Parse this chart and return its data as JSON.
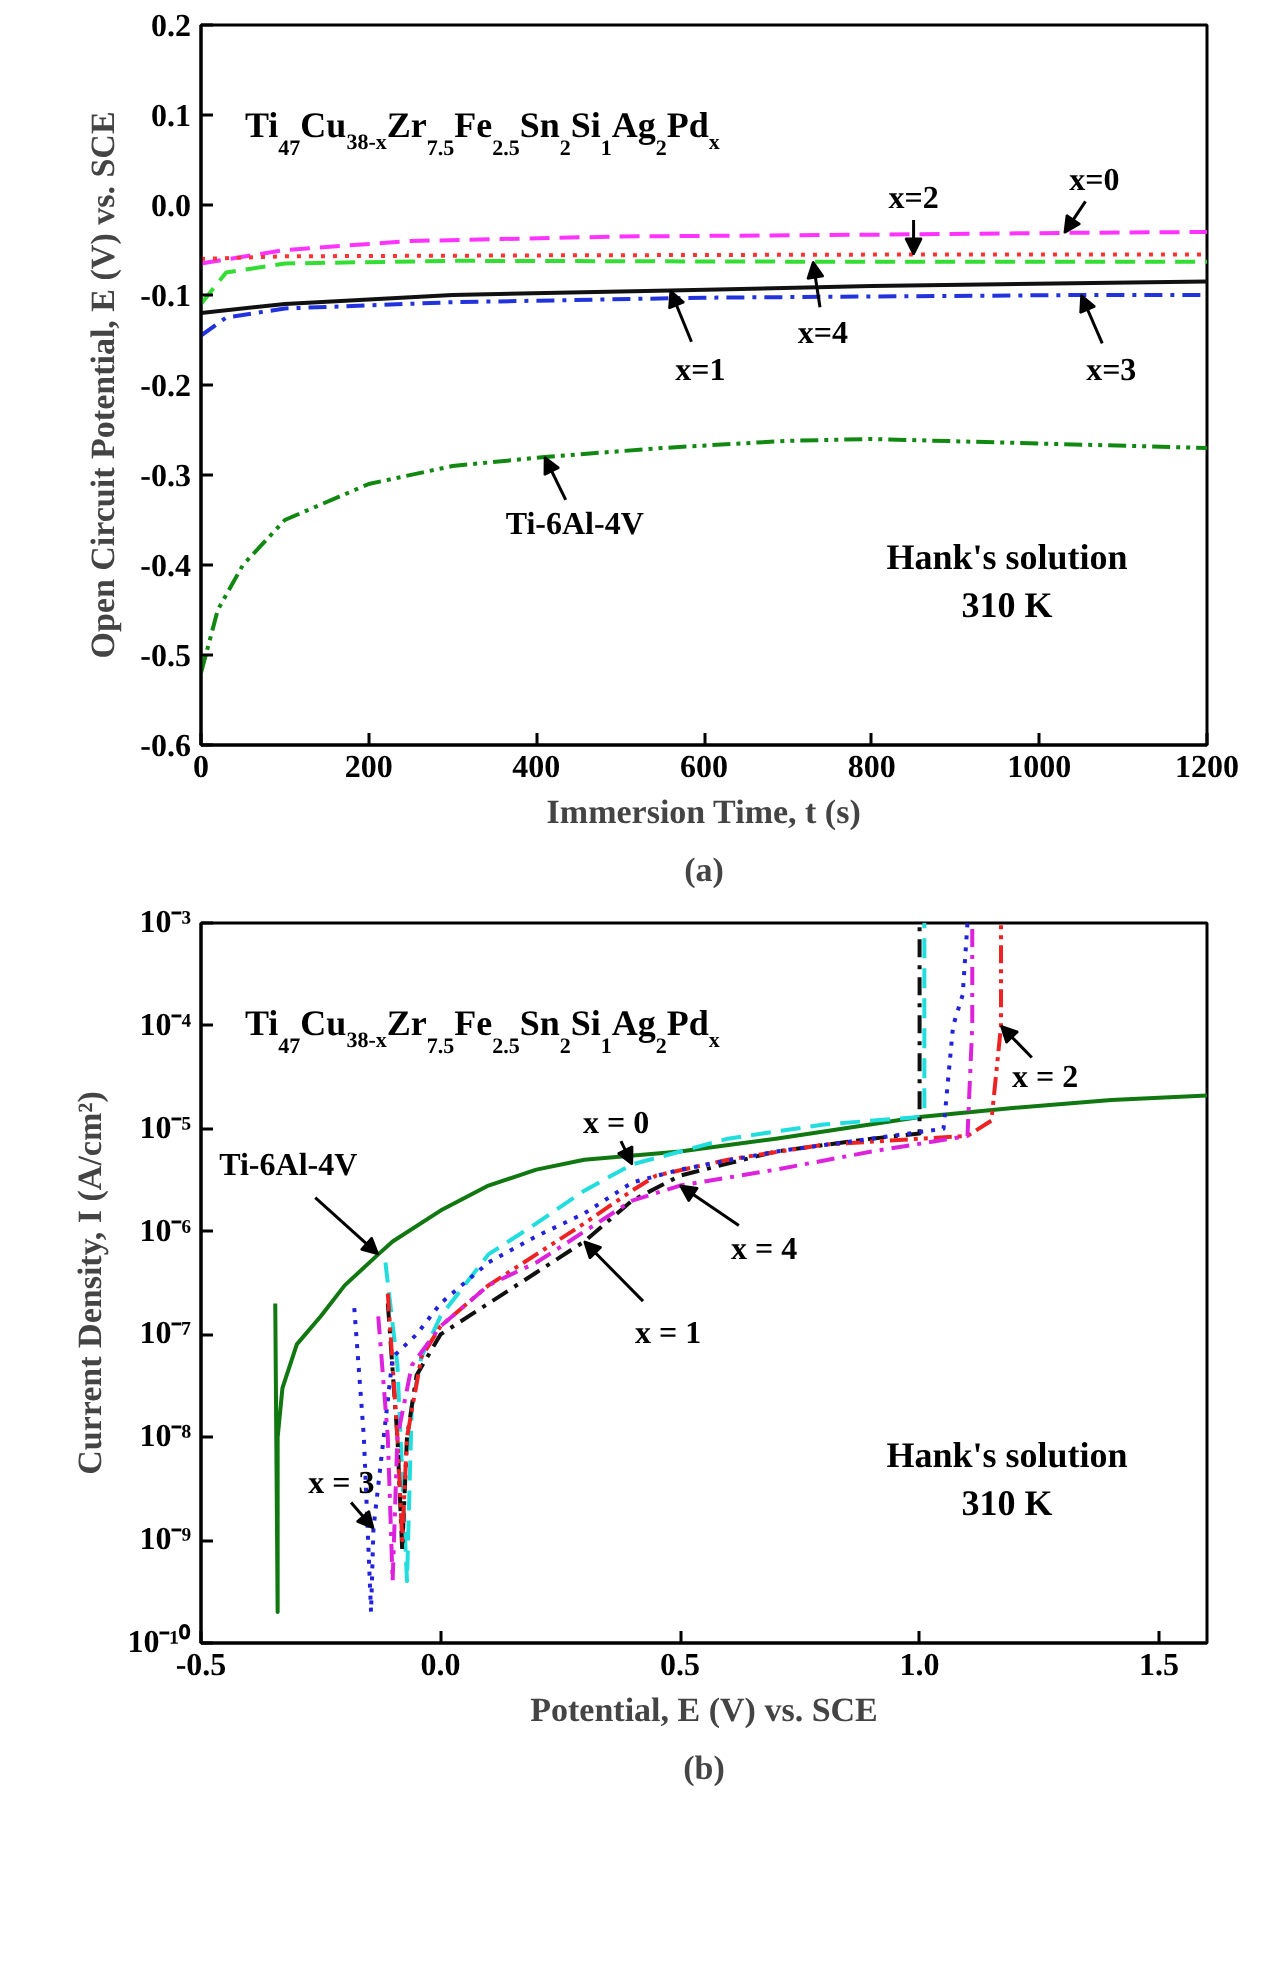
{
  "chart_data": [
    {
      "type": "line",
      "title": "(a)",
      "xlabel": "Immersion Time, t (s)",
      "ylabel": "Open Circuit Potential, E (V) vs. SCE",
      "xlim": [
        0,
        1200
      ],
      "xticks": [
        0,
        200,
        400,
        600,
        800,
        1000,
        1200
      ],
      "ylim": [
        -0.6,
        0.2
      ],
      "yticks": [
        {
          "value": -0.6,
          "label": "-0.6"
        },
        {
          "value": -0.5,
          "label": "-0.5"
        },
        {
          "value": -0.4,
          "label": "-0.4"
        },
        {
          "value": -0.3,
          "label": "-0.3"
        },
        {
          "value": -0.2,
          "label": "-0.2"
        },
        {
          "value": -0.1,
          "label": "-0.1"
        },
        {
          "value": 0,
          "label": "0.0"
        },
        {
          "value": 0.1,
          "label": "0.1"
        },
        {
          "value": 0.2,
          "label": "0.2"
        }
      ],
      "grid": false,
      "marker": "none",
      "annotations": [
        "Ti$_{47}$Cu$_{38-x}$Zr$_{7.5}$Fe$_{2.5}$Sn$_{2}$Si$_{1}$Ag$_{2}$Pd$_{x}$",
        "Hank's solution\n310 K"
      ],
      "series": [
        {
          "name": "x=0",
          "color": "#ff33ff",
          "line_style": "dashed",
          "x": [
            0,
            100,
            250,
            500,
            800,
            1030,
            1200
          ],
          "values": [
            -0.065,
            -0.05,
            -0.04,
            -0.035,
            -0.033,
            -0.031,
            -0.03
          ]
        },
        {
          "name": "x=2",
          "color": "#ff3333",
          "line_style": "dotted",
          "x": [
            0,
            100,
            400,
            850,
            1200
          ],
          "values": [
            -0.06,
            -0.057,
            -0.056,
            -0.055,
            -0.055
          ]
        },
        {
          "name": "x=4",
          "color": "#33dd33",
          "line_style": "dashed",
          "x": [
            0,
            30,
            100,
            300,
            730,
            1200
          ],
          "values": [
            -0.11,
            -0.075,
            -0.065,
            -0.062,
            -0.063,
            -0.063
          ]
        },
        {
          "name": "x=1",
          "color": "#111111",
          "line_style": "solid",
          "x": [
            0,
            100,
            300,
            560,
            800,
            1200
          ],
          "values": [
            -0.12,
            -0.11,
            -0.1,
            -0.095,
            -0.09,
            -0.085
          ]
        },
        {
          "name": "x=3",
          "color": "#2233dd",
          "line_style": "dashdot",
          "x": [
            0,
            30,
            100,
            300,
            600,
            1050,
            1200
          ],
          "values": [
            -0.145,
            -0.125,
            -0.115,
            -0.108,
            -0.103,
            -0.1,
            -0.1
          ]
        },
        {
          "name": "Ti-6Al-4V",
          "color": "#118811",
          "line_style": "dashdotdot",
          "x": [
            0,
            20,
            50,
            100,
            200,
            300,
            410,
            550,
            700,
            800,
            1000,
            1200
          ],
          "values": [
            -0.52,
            -0.45,
            -0.4,
            -0.35,
            -0.31,
            -0.29,
            -0.28,
            -0.27,
            -0.262,
            -0.26,
            -0.265,
            -0.27
          ]
        }
      ]
    },
    {
      "type": "line",
      "title": "(b)",
      "xlabel": "Potential, E (V) vs. SCE",
      "ylabel": "Current Density, I (A/cm²)",
      "log": "y",
      "xlim": [
        -0.5,
        1.6
      ],
      "xticks": [
        {
          "value": -0.5,
          "label": "-0.5"
        },
        {
          "value": 0,
          "label": "0.0"
        },
        {
          "value": 0.5,
          "label": "0.5"
        },
        {
          "value": 1,
          "label": "1.0"
        },
        {
          "value": 1.5,
          "label": "1.5"
        }
      ],
      "ylim": [
        1e-10,
        0.001
      ],
      "yticks": [
        {
          "value": 1e-10,
          "label": "10⁻¹⁰"
        },
        {
          "value": 1e-09,
          "label": "10⁻⁹"
        },
        {
          "value": 1e-08,
          "label": "10⁻⁸"
        },
        {
          "value": 1e-07,
          "label": "10⁻⁷"
        },
        {
          "value": 1e-06,
          "label": "10⁻⁶"
        },
        {
          "value": 1e-05,
          "label": "10⁻⁵"
        },
        {
          "value": 0.0001,
          "label": "10⁻⁴"
        },
        {
          "value": 0.001,
          "label": "10⁻³"
        }
      ],
      "grid": false,
      "marker": "none",
      "annotations": [
        "Ti$_{47}$Cu$_{38-x}$Zr$_{7.5}$Fe$_{2.5}$Sn$_{2}$Si$_{1}$Ag$_{2}$Pd$_{x}$",
        "Hank's solution\n310 K"
      ],
      "series": [
        {
          "name": "Ti-6Al-4V",
          "color": "#117711",
          "line_style": "solid",
          "x": [
            -0.345,
            -0.34,
            -0.34,
            -0.33,
            -0.3,
            -0.25,
            -0.2,
            -0.13,
            -0.1,
            0,
            0.1,
            0.2,
            0.3,
            0.5,
            0.7,
            1.0,
            1.2,
            1.4,
            1.6
          ],
          "values": [
            2e-07,
            2e-10,
            1e-08,
            3e-08,
            8e-08,
            1.5e-07,
            3e-07,
            6e-07,
            8e-07,
            1.6e-06,
            2.8e-06,
            4e-06,
            5e-06,
            6e-06,
            8e-06,
            1.3e-05,
            1.6e-05,
            1.9e-05,
            2.1e-05
          ]
        },
        {
          "name": "x = 0",
          "color": "#22dddd",
          "line_style": "dashed",
          "x": [
            -0.115,
            -0.09,
            -0.07,
            -0.06,
            -0.04,
            0,
            0.1,
            0.2,
            0.3,
            0.4,
            0.6,
            0.8,
            1.0,
            1.01,
            1.01
          ],
          "values": [
            5e-07,
            5e-08,
            4e-10,
            2e-08,
            6e-08,
            1.5e-07,
            6e-07,
            1.2e-06,
            2.5e-06,
            4.5e-06,
            8e-06,
            1.1e-05,
            1.3e-05,
            1.5e-05,
            0.001
          ]
        },
        {
          "name": "x = 1",
          "color": "#111111",
          "line_style": "dashdot",
          "x": [
            -0.11,
            -0.09,
            -0.08,
            -0.07,
            -0.05,
            0,
            0.1,
            0.2,
            0.3,
            0.4,
            0.5,
            0.7,
            0.9,
            1.0,
            1.0
          ],
          "values": [
            2e-07,
            1e-08,
            8e-10,
            1e-08,
            4e-08,
            1e-07,
            2e-07,
            4e-07,
            8e-07,
            2e-06,
            3.5e-06,
            6e-06,
            8e-06,
            9e-06,
            0.001
          ]
        },
        {
          "name": "x = 2",
          "color": "#ee2222",
          "line_style": "dashdotdot",
          "x": [
            -0.11,
            -0.09,
            -0.08,
            -0.07,
            -0.04,
            0,
            0.1,
            0.2,
            0.3,
            0.4,
            0.45,
            0.6,
            0.8,
            1.0,
            1.1,
            1.15,
            1.17,
            1.17
          ],
          "values": [
            2.5e-07,
            1e-08,
            1e-09,
            1e-08,
            6e-08,
            1.2e-07,
            3e-07,
            6e-07,
            1.2e-06,
            2.5e-06,
            3.5e-06,
            5e-06,
            7e-06,
            8e-06,
            8.5e-06,
            1.2e-05,
            0.0001,
            0.001
          ]
        },
        {
          "name": "x = 3",
          "color": "#2222dd",
          "line_style": "dotted",
          "x": [
            -0.18,
            -0.16,
            -0.145,
            -0.14,
            -0.1,
            -0.05,
            0,
            0.1,
            0.2,
            0.3,
            0.4,
            0.5,
            0.7,
            0.9,
            1.05,
            1.07,
            1.09,
            1.1
          ],
          "values": [
            1.8e-07,
            1e-08,
            2e-10,
            1.3e-09,
            6e-08,
            1e-07,
            2e-07,
            5e-07,
            9e-07,
            1.5e-06,
            3e-06,
            4e-06,
            6e-06,
            8e-06,
            1e-05,
            0.0001,
            0.0002,
            0.001
          ]
        },
        {
          "name": "x = 4",
          "color": "#dd22dd",
          "line_style": "dashdot",
          "x": [
            -0.13,
            -0.11,
            -0.1,
            -0.09,
            -0.06,
            0,
            0.1,
            0.2,
            0.3,
            0.4,
            0.5,
            0.7,
            0.9,
            1.1,
            1.11,
            1.11
          ],
          "values": [
            1.5e-07,
            1e-08,
            4e-10,
            1e-08,
            5e-08,
            1.2e-07,
            3e-07,
            5e-07,
            1e-06,
            2e-06,
            2.8e-06,
            4e-06,
            6e-06,
            8.5e-06,
            0.0001,
            0.001
          ]
        }
      ]
    }
  ]
}
